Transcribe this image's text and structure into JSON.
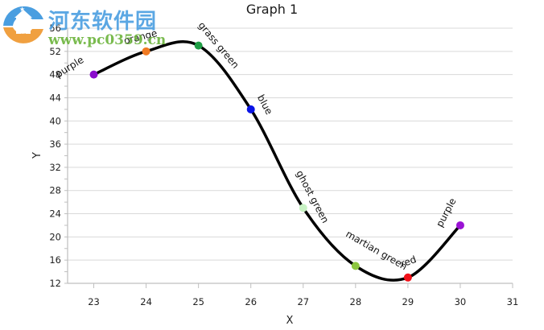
{
  "watermark": {
    "site_name": "河东软件园",
    "url": "www.pc0359.cn"
  },
  "chart_data": {
    "type": "line",
    "title": "Graph 1",
    "xlabel": "X",
    "ylabel": "Y",
    "xlim": [
      22.5,
      31
    ],
    "ylim": [
      12,
      56
    ],
    "x_ticks": [
      23,
      24,
      25,
      26,
      27,
      28,
      29,
      30,
      31
    ],
    "y_ticks": [
      12,
      16,
      20,
      24,
      28,
      32,
      36,
      40,
      44,
      48,
      52,
      56
    ],
    "grid": "horizontal",
    "legend": "none",
    "smooth": true,
    "line_color": "#000000",
    "series": [
      {
        "name": "Graph 1",
        "points": [
          {
            "x": 23,
            "y": 48,
            "label": "purple",
            "color": "#8a0ccc"
          },
          {
            "x": 24,
            "y": 52,
            "label": "orange",
            "color": "#f07a22"
          },
          {
            "x": 25,
            "y": 53,
            "label": "grass green",
            "color": "#1f9d45"
          },
          {
            "x": 26,
            "y": 42,
            "label": "blue",
            "color": "#0a14e6"
          },
          {
            "x": 27,
            "y": 25,
            "label": "ghost green",
            "color": "#c8f2c4"
          },
          {
            "x": 28,
            "y": 15,
            "label": "martian green",
            "color": "#8cc63f"
          },
          {
            "x": 29,
            "y": 13,
            "label": "red",
            "color": "#f01018"
          },
          {
            "x": 30,
            "y": 22,
            "label": "purple",
            "color": "#9a12d4"
          }
        ]
      }
    ]
  }
}
